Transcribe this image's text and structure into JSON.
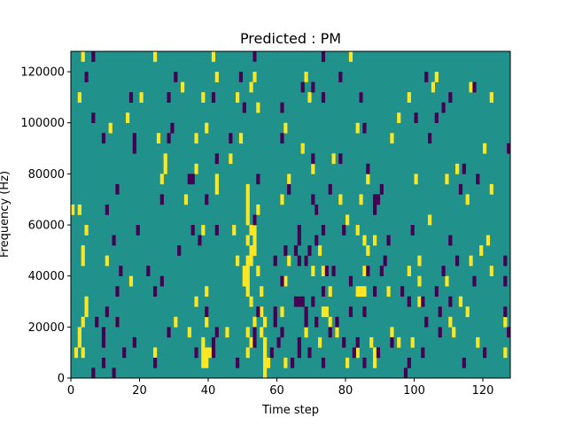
{
  "chart_data": {
    "type": "heatmap",
    "title": "Predicted : PM",
    "xlabel": "Time step",
    "ylabel": "Frequency (Hz)",
    "xlim": [
      0,
      128
    ],
    "ylim": [
      0,
      128000
    ],
    "xticks": [
      0,
      20,
      40,
      60,
      80,
      100,
      120
    ],
    "yticks": [
      0,
      20000,
      40000,
      60000,
      80000,
      100000,
      120000
    ],
    "xtick_labels": [
      "0",
      "20",
      "40",
      "60",
      "80",
      "100",
      "120"
    ],
    "ytick_labels": [
      "0",
      "20000",
      "40000",
      "60000",
      "80000",
      "100000",
      "120000"
    ],
    "grid": false,
    "colormap": "viridis",
    "colors": {
      "background": "#21918c",
      "high": "#fde725",
      "low": "#440154"
    },
    "cell_size": {
      "x_steps": 1,
      "y_hz": 4000
    },
    "cells_high": [
      [
        3,
        124000
      ],
      [
        24,
        124000
      ],
      [
        41,
        124000
      ],
      [
        53,
        124000
      ],
      [
        81,
        124000
      ],
      [
        68,
        116000
      ],
      [
        42,
        116000
      ],
      [
        53,
        116000
      ],
      [
        106,
        116000
      ],
      [
        52,
        112000
      ],
      [
        32,
        112000
      ],
      [
        105,
        112000
      ],
      [
        116,
        112000
      ],
      [
        2,
        108000
      ],
      [
        20,
        108000
      ],
      [
        38,
        108000
      ],
      [
        48,
        108000
      ],
      [
        69,
        108000
      ],
      [
        84,
        108000
      ],
      [
        98,
        108000
      ],
      [
        122,
        108000
      ],
      [
        54,
        104000
      ],
      [
        95,
        100000
      ],
      [
        16,
        100000
      ],
      [
        11,
        96000
      ],
      [
        39,
        96000
      ],
      [
        62,
        96000
      ],
      [
        83,
        96000
      ],
      [
        25,
        92000
      ],
      [
        36,
        92000
      ],
      [
        49,
        92000
      ],
      [
        93,
        92000
      ],
      [
        120,
        88000
      ],
      [
        67,
        88000
      ],
      [
        27,
        84000
      ],
      [
        46,
        84000
      ],
      [
        76,
        84000
      ],
      [
        27,
        80000
      ],
      [
        36,
        80000
      ],
      [
        70,
        80000
      ],
      [
        112,
        80000
      ],
      [
        26,
        76000
      ],
      [
        42,
        76000
      ],
      [
        63,
        76000
      ],
      [
        86,
        76000
      ],
      [
        100,
        76000
      ],
      [
        109,
        76000
      ],
      [
        42,
        72000
      ],
      [
        51,
        72000
      ],
      [
        122,
        72000
      ],
      [
        51,
        68000
      ],
      [
        33,
        68000
      ],
      [
        61,
        68000
      ],
      [
        78,
        68000
      ],
      [
        84,
        68000
      ],
      [
        115,
        68000
      ],
      [
        0,
        64000
      ],
      [
        2,
        64000
      ],
      [
        51,
        64000
      ],
      [
        54,
        64000
      ],
      [
        71,
        64000
      ],
      [
        51,
        60000
      ],
      [
        53,
        60000
      ],
      [
        80,
        60000
      ],
      [
        104,
        60000
      ],
      [
        4,
        56000
      ],
      [
        38,
        56000
      ],
      [
        52,
        56000
      ],
      [
        47,
        56000
      ],
      [
        53,
        56000
      ],
      [
        83,
        56000
      ],
      [
        51,
        52000
      ],
      [
        53,
        52000
      ],
      [
        85,
        52000
      ],
      [
        88,
        52000
      ],
      [
        121,
        52000
      ],
      [
        52,
        48000
      ],
      [
        53,
        48000
      ],
      [
        3,
        48000
      ],
      [
        72,
        48000
      ],
      [
        86,
        48000
      ],
      [
        119,
        48000
      ],
      [
        3,
        44000
      ],
      [
        10,
        44000
      ],
      [
        48,
        44000
      ],
      [
        51,
        44000
      ],
      [
        52,
        44000
      ],
      [
        63,
        44000
      ],
      [
        68,
        44000
      ],
      [
        101,
        44000
      ],
      [
        116,
        44000
      ],
      [
        50,
        40000
      ],
      [
        51,
        40000
      ],
      [
        54,
        40000
      ],
      [
        70,
        40000
      ],
      [
        73,
        40000
      ],
      [
        85,
        40000
      ],
      [
        98,
        40000
      ],
      [
        122,
        40000
      ],
      [
        17,
        36000
      ],
      [
        50,
        36000
      ],
      [
        51,
        36000
      ],
      [
        62,
        36000
      ],
      [
        101,
        36000
      ],
      [
        109,
        36000
      ],
      [
        51,
        32000
      ],
      [
        55,
        32000
      ],
      [
        39,
        32000
      ],
      [
        75,
        32000
      ],
      [
        83,
        32000
      ],
      [
        84,
        32000
      ],
      [
        85,
        32000
      ],
      [
        92,
        32000
      ],
      [
        4,
        28000
      ],
      [
        36,
        28000
      ],
      [
        52,
        28000
      ],
      [
        66,
        28000
      ],
      [
        101,
        28000
      ],
      [
        113,
        28000
      ],
      [
        4,
        24000
      ],
      [
        55,
        24000
      ],
      [
        61,
        24000
      ],
      [
        73,
        24000
      ],
      [
        74,
        24000
      ],
      [
        115,
        24000
      ],
      [
        3,
        20000
      ],
      [
        13,
        20000
      ],
      [
        30,
        20000
      ],
      [
        39,
        20000
      ],
      [
        53,
        20000
      ],
      [
        56,
        20000
      ],
      [
        75,
        20000
      ],
      [
        110,
        20000
      ],
      [
        126,
        20000
      ],
      [
        2,
        16000
      ],
      [
        34,
        16000
      ],
      [
        45,
        16000
      ],
      [
        51,
        16000
      ],
      [
        55,
        16000
      ],
      [
        68,
        16000
      ],
      [
        77,
        16000
      ],
      [
        93,
        16000
      ],
      [
        111,
        16000
      ],
      [
        2,
        12000
      ],
      [
        38,
        12000
      ],
      [
        52,
        12000
      ],
      [
        56,
        12000
      ],
      [
        72,
        12000
      ],
      [
        87,
        12000
      ],
      [
        95,
        12000
      ],
      [
        99,
        12000
      ],
      [
        118,
        12000
      ],
      [
        1,
        8000
      ],
      [
        3,
        8000
      ],
      [
        24,
        8000
      ],
      [
        38,
        8000
      ],
      [
        39,
        8000
      ],
      [
        40,
        8000
      ],
      [
        51,
        8000
      ],
      [
        56,
        8000
      ],
      [
        83,
        8000
      ],
      [
        88,
        8000
      ],
      [
        126,
        8000
      ],
      [
        38,
        4000
      ],
      [
        39,
        4000
      ],
      [
        56,
        4000
      ],
      [
        57,
        4000
      ],
      [
        62,
        4000
      ],
      [
        80,
        4000
      ],
      [
        88,
        4000
      ],
      [
        56,
        0
      ]
    ],
    "cells_low": [
      [
        6,
        124000
      ],
      [
        53,
        124000
      ],
      [
        73,
        124000
      ],
      [
        4,
        116000
      ],
      [
        30,
        116000
      ],
      [
        49,
        116000
      ],
      [
        78,
        116000
      ],
      [
        103,
        116000
      ],
      [
        70,
        112000
      ],
      [
        117,
        112000
      ],
      [
        67,
        112000
      ],
      [
        17,
        108000
      ],
      [
        28,
        108000
      ],
      [
        41,
        108000
      ],
      [
        73,
        108000
      ],
      [
        84,
        108000
      ],
      [
        110,
        108000
      ],
      [
        50,
        104000
      ],
      [
        61,
        104000
      ],
      [
        108,
        104000
      ],
      [
        6,
        100000
      ],
      [
        106,
        100000
      ],
      [
        100,
        100000
      ],
      [
        29,
        96000
      ],
      [
        85,
        96000
      ],
      [
        9,
        92000
      ],
      [
        18,
        92000
      ],
      [
        28,
        92000
      ],
      [
        46,
        92000
      ],
      [
        61,
        92000
      ],
      [
        104,
        92000
      ],
      [
        18,
        88000
      ],
      [
        127,
        88000
      ],
      [
        42,
        84000
      ],
      [
        70,
        84000
      ],
      [
        78,
        84000
      ],
      [
        114,
        80000
      ],
      [
        86,
        80000
      ],
      [
        34,
        76000
      ],
      [
        35,
        76000
      ],
      [
        54,
        76000
      ],
      [
        118,
        76000
      ],
      [
        13,
        72000
      ],
      [
        63,
        72000
      ],
      [
        75,
        72000
      ],
      [
        90,
        72000
      ],
      [
        113,
        72000
      ],
      [
        26,
        68000
      ],
      [
        39,
        68000
      ],
      [
        70,
        68000
      ],
      [
        89,
        68000
      ],
      [
        88,
        68000
      ],
      [
        10,
        64000
      ],
      [
        71,
        64000
      ],
      [
        88,
        64000
      ],
      [
        53,
        60000
      ],
      [
        19,
        56000
      ],
      [
        35,
        56000
      ],
      [
        42,
        56000
      ],
      [
        66,
        56000
      ],
      [
        73,
        56000
      ],
      [
        79,
        56000
      ],
      [
        99,
        56000
      ],
      [
        12,
        52000
      ],
      [
        37,
        52000
      ],
      [
        66,
        52000
      ],
      [
        71,
        52000
      ],
      [
        92,
        52000
      ],
      [
        110,
        52000
      ],
      [
        62,
        48000
      ],
      [
        31,
        48000
      ],
      [
        65,
        48000
      ],
      [
        69,
        48000
      ],
      [
        68,
        44000
      ],
      [
        59,
        44000
      ],
      [
        66,
        44000
      ],
      [
        91,
        44000
      ],
      [
        112,
        44000
      ],
      [
        126,
        44000
      ],
      [
        14,
        40000
      ],
      [
        22,
        40000
      ],
      [
        74,
        40000
      ],
      [
        76,
        40000
      ],
      [
        86,
        40000
      ],
      [
        90,
        40000
      ],
      [
        108,
        40000
      ],
      [
        26,
        36000
      ],
      [
        61,
        36000
      ],
      [
        81,
        36000
      ],
      [
        117,
        36000
      ],
      [
        126,
        36000
      ],
      [
        24,
        32000
      ],
      [
        13,
        32000
      ],
      [
        73,
        32000
      ],
      [
        88,
        32000
      ],
      [
        96,
        32000
      ],
      [
        106,
        32000
      ],
      [
        65,
        28000
      ],
      [
        66,
        28000
      ],
      [
        67,
        28000
      ],
      [
        70,
        28000
      ],
      [
        98,
        28000
      ],
      [
        102,
        28000
      ],
      [
        110,
        28000
      ],
      [
        10,
        24000
      ],
      [
        39,
        24000
      ],
      [
        54,
        24000
      ],
      [
        59,
        24000
      ],
      [
        68,
        24000
      ],
      [
        81,
        24000
      ],
      [
        85,
        24000
      ],
      [
        107,
        24000
      ],
      [
        126,
        24000
      ],
      [
        7,
        20000
      ],
      [
        13,
        20000
      ],
      [
        59,
        20000
      ],
      [
        68,
        20000
      ],
      [
        71,
        20000
      ],
      [
        77,
        20000
      ],
      [
        103,
        20000
      ],
      [
        9,
        16000
      ],
      [
        28,
        16000
      ],
      [
        42,
        16000
      ],
      [
        53,
        16000
      ],
      [
        61,
        16000
      ],
      [
        75,
        16000
      ],
      [
        107,
        16000
      ],
      [
        127,
        16000
      ],
      [
        9,
        12000
      ],
      [
        18,
        12000
      ],
      [
        41,
        12000
      ],
      [
        53,
        12000
      ],
      [
        60,
        12000
      ],
      [
        66,
        12000
      ],
      [
        79,
        12000
      ],
      [
        83,
        12000
      ],
      [
        93,
        12000
      ],
      [
        15,
        8000
      ],
      [
        36,
        8000
      ],
      [
        41,
        8000
      ],
      [
        58,
        8000
      ],
      [
        66,
        8000
      ],
      [
        69,
        8000
      ],
      [
        82,
        8000
      ],
      [
        89,
        8000
      ],
      [
        102,
        8000
      ],
      [
        120,
        8000
      ],
      [
        9,
        4000
      ],
      [
        24,
        4000
      ],
      [
        48,
        4000
      ],
      [
        64,
        4000
      ],
      [
        73,
        4000
      ],
      [
        85,
        4000
      ],
      [
        98,
        4000
      ],
      [
        114,
        4000
      ],
      [
        12,
        0
      ],
      [
        6,
        0
      ],
      [
        97,
        0
      ]
    ]
  }
}
